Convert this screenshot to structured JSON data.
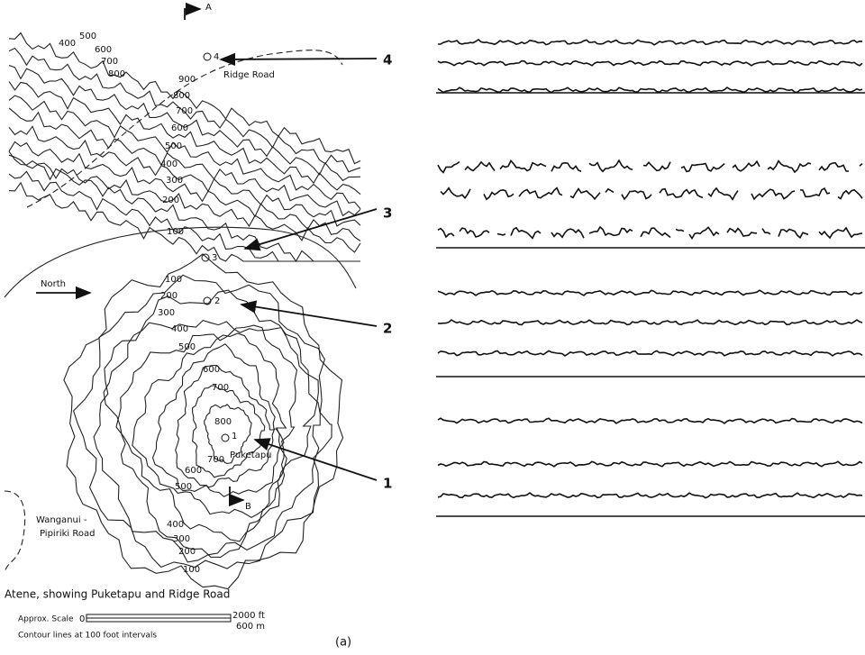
{
  "map": {
    "section_marks": [
      "A",
      "B"
    ],
    "stations": [
      "4",
      "3",
      "2",
      "1"
    ],
    "contour_labels": [
      "400",
      "500",
      "600",
      "700",
      "800",
      "900",
      "800",
      "700",
      "600",
      "500",
      "400",
      "300",
      "200",
      "100",
      "100",
      "200",
      "300",
      "400",
      "500",
      "600",
      "700",
      "800",
      "700",
      "600",
      "500",
      "400",
      "300",
      "200",
      "100"
    ],
    "places": [
      "Ridge Road",
      "North",
      "Puketapu",
      "Wanganui -",
      "Pipiriki Road"
    ],
    "caption": "Atene, showing Puketapu and Ridge Road",
    "scale": {
      "label": "Approx. Scale",
      "zero": "0",
      "feet": "2000 ft",
      "meters": "600 m"
    },
    "contour_note": "Contour lines at   100 foot  intervals"
  },
  "records": {
    "labels": [
      "4",
      "3",
      "2",
      "1"
    ]
  },
  "panel_label": "(a)"
}
